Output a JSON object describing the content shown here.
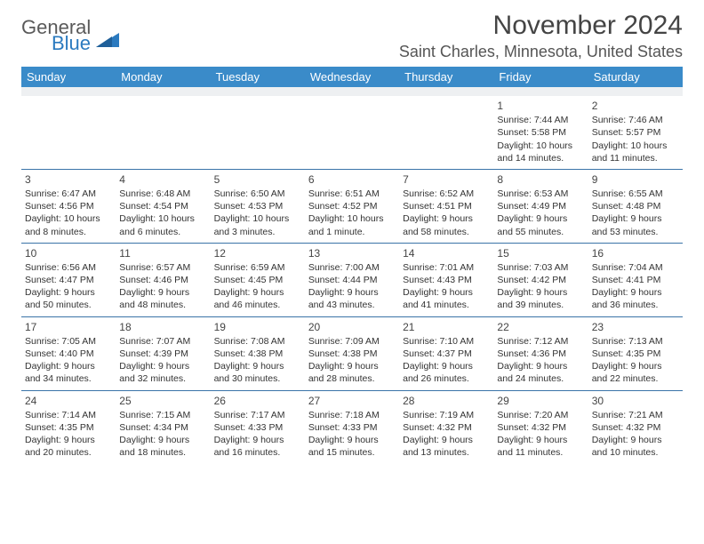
{
  "brand": {
    "text1": "General",
    "text2": "Blue"
  },
  "title": "November 2024",
  "location": "Saint Charles, Minnesota, United States",
  "colors": {
    "header_bg": "#3a8bc9",
    "header_text": "#ffffff",
    "rule": "#3a74a8",
    "blank_bg": "#eef0f2",
    "brand_gray": "#5a5a5a",
    "brand_blue": "#2b7abf"
  },
  "weekdays": [
    "Sunday",
    "Monday",
    "Tuesday",
    "Wednesday",
    "Thursday",
    "Friday",
    "Saturday"
  ],
  "weeks": [
    [
      null,
      null,
      null,
      null,
      null,
      {
        "d": "1",
        "sr": "Sunrise: 7:44 AM",
        "ss": "Sunset: 5:58 PM",
        "dl1": "Daylight: 10 hours",
        "dl2": "and 14 minutes."
      },
      {
        "d": "2",
        "sr": "Sunrise: 7:46 AM",
        "ss": "Sunset: 5:57 PM",
        "dl1": "Daylight: 10 hours",
        "dl2": "and 11 minutes."
      }
    ],
    [
      {
        "d": "3",
        "sr": "Sunrise: 6:47 AM",
        "ss": "Sunset: 4:56 PM",
        "dl1": "Daylight: 10 hours",
        "dl2": "and 8 minutes."
      },
      {
        "d": "4",
        "sr": "Sunrise: 6:48 AM",
        "ss": "Sunset: 4:54 PM",
        "dl1": "Daylight: 10 hours",
        "dl2": "and 6 minutes."
      },
      {
        "d": "5",
        "sr": "Sunrise: 6:50 AM",
        "ss": "Sunset: 4:53 PM",
        "dl1": "Daylight: 10 hours",
        "dl2": "and 3 minutes."
      },
      {
        "d": "6",
        "sr": "Sunrise: 6:51 AM",
        "ss": "Sunset: 4:52 PM",
        "dl1": "Daylight: 10 hours",
        "dl2": "and 1 minute."
      },
      {
        "d": "7",
        "sr": "Sunrise: 6:52 AM",
        "ss": "Sunset: 4:51 PM",
        "dl1": "Daylight: 9 hours",
        "dl2": "and 58 minutes."
      },
      {
        "d": "8",
        "sr": "Sunrise: 6:53 AM",
        "ss": "Sunset: 4:49 PM",
        "dl1": "Daylight: 9 hours",
        "dl2": "and 55 minutes."
      },
      {
        "d": "9",
        "sr": "Sunrise: 6:55 AM",
        "ss": "Sunset: 4:48 PM",
        "dl1": "Daylight: 9 hours",
        "dl2": "and 53 minutes."
      }
    ],
    [
      {
        "d": "10",
        "sr": "Sunrise: 6:56 AM",
        "ss": "Sunset: 4:47 PM",
        "dl1": "Daylight: 9 hours",
        "dl2": "and 50 minutes."
      },
      {
        "d": "11",
        "sr": "Sunrise: 6:57 AM",
        "ss": "Sunset: 4:46 PM",
        "dl1": "Daylight: 9 hours",
        "dl2": "and 48 minutes."
      },
      {
        "d": "12",
        "sr": "Sunrise: 6:59 AM",
        "ss": "Sunset: 4:45 PM",
        "dl1": "Daylight: 9 hours",
        "dl2": "and 46 minutes."
      },
      {
        "d": "13",
        "sr": "Sunrise: 7:00 AM",
        "ss": "Sunset: 4:44 PM",
        "dl1": "Daylight: 9 hours",
        "dl2": "and 43 minutes."
      },
      {
        "d": "14",
        "sr": "Sunrise: 7:01 AM",
        "ss": "Sunset: 4:43 PM",
        "dl1": "Daylight: 9 hours",
        "dl2": "and 41 minutes."
      },
      {
        "d": "15",
        "sr": "Sunrise: 7:03 AM",
        "ss": "Sunset: 4:42 PM",
        "dl1": "Daylight: 9 hours",
        "dl2": "and 39 minutes."
      },
      {
        "d": "16",
        "sr": "Sunrise: 7:04 AM",
        "ss": "Sunset: 4:41 PM",
        "dl1": "Daylight: 9 hours",
        "dl2": "and 36 minutes."
      }
    ],
    [
      {
        "d": "17",
        "sr": "Sunrise: 7:05 AM",
        "ss": "Sunset: 4:40 PM",
        "dl1": "Daylight: 9 hours",
        "dl2": "and 34 minutes."
      },
      {
        "d": "18",
        "sr": "Sunrise: 7:07 AM",
        "ss": "Sunset: 4:39 PM",
        "dl1": "Daylight: 9 hours",
        "dl2": "and 32 minutes."
      },
      {
        "d": "19",
        "sr": "Sunrise: 7:08 AM",
        "ss": "Sunset: 4:38 PM",
        "dl1": "Daylight: 9 hours",
        "dl2": "and 30 minutes."
      },
      {
        "d": "20",
        "sr": "Sunrise: 7:09 AM",
        "ss": "Sunset: 4:38 PM",
        "dl1": "Daylight: 9 hours",
        "dl2": "and 28 minutes."
      },
      {
        "d": "21",
        "sr": "Sunrise: 7:10 AM",
        "ss": "Sunset: 4:37 PM",
        "dl1": "Daylight: 9 hours",
        "dl2": "and 26 minutes."
      },
      {
        "d": "22",
        "sr": "Sunrise: 7:12 AM",
        "ss": "Sunset: 4:36 PM",
        "dl1": "Daylight: 9 hours",
        "dl2": "and 24 minutes."
      },
      {
        "d": "23",
        "sr": "Sunrise: 7:13 AM",
        "ss": "Sunset: 4:35 PM",
        "dl1": "Daylight: 9 hours",
        "dl2": "and 22 minutes."
      }
    ],
    [
      {
        "d": "24",
        "sr": "Sunrise: 7:14 AM",
        "ss": "Sunset: 4:35 PM",
        "dl1": "Daylight: 9 hours",
        "dl2": "and 20 minutes."
      },
      {
        "d": "25",
        "sr": "Sunrise: 7:15 AM",
        "ss": "Sunset: 4:34 PM",
        "dl1": "Daylight: 9 hours",
        "dl2": "and 18 minutes."
      },
      {
        "d": "26",
        "sr": "Sunrise: 7:17 AM",
        "ss": "Sunset: 4:33 PM",
        "dl1": "Daylight: 9 hours",
        "dl2": "and 16 minutes."
      },
      {
        "d": "27",
        "sr": "Sunrise: 7:18 AM",
        "ss": "Sunset: 4:33 PM",
        "dl1": "Daylight: 9 hours",
        "dl2": "and 15 minutes."
      },
      {
        "d": "28",
        "sr": "Sunrise: 7:19 AM",
        "ss": "Sunset: 4:32 PM",
        "dl1": "Daylight: 9 hours",
        "dl2": "and 13 minutes."
      },
      {
        "d": "29",
        "sr": "Sunrise: 7:20 AM",
        "ss": "Sunset: 4:32 PM",
        "dl1": "Daylight: 9 hours",
        "dl2": "and 11 minutes."
      },
      {
        "d": "30",
        "sr": "Sunrise: 7:21 AM",
        "ss": "Sunset: 4:32 PM",
        "dl1": "Daylight: 9 hours",
        "dl2": "and 10 minutes."
      }
    ]
  ]
}
